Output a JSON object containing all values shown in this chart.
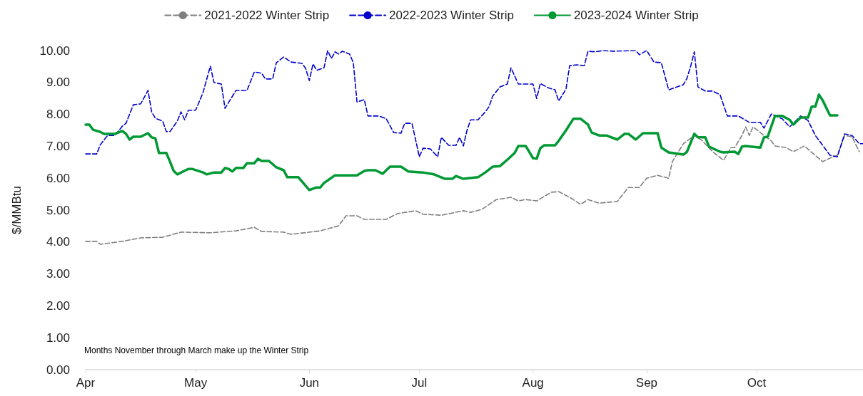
{
  "chart_data": {
    "type": "line",
    "ylabel": "$/MMBtu",
    "annotations": [
      "Months November through March make up the Winter Strip"
    ],
    "xlim": [
      "--04-01",
      "--10-30"
    ],
    "xticks": [
      {
        "value": "--04-01",
        "label": "Apr"
      },
      {
        "value": "--05-01",
        "label": "May"
      },
      {
        "value": "--06-01",
        "label": "Jun"
      },
      {
        "value": "--07-01",
        "label": "Jul"
      },
      {
        "value": "--08-01",
        "label": "Aug"
      },
      {
        "value": "--09-01",
        "label": "Sep"
      },
      {
        "value": "--10-01",
        "label": "Oct"
      }
    ],
    "ylim": [
      0,
      10
    ],
    "yticks": [
      {
        "value": 0,
        "label": "0.00"
      },
      {
        "value": 1,
        "label": "1.00"
      },
      {
        "value": 2,
        "label": "2.00"
      },
      {
        "value": 3,
        "label": "3.00"
      },
      {
        "value": 4,
        "label": "4.00"
      },
      {
        "value": 5,
        "label": "5.00"
      },
      {
        "value": 6,
        "label": "6.00"
      },
      {
        "value": 7,
        "label": "7.00"
      },
      {
        "value": 8,
        "label": "8.00"
      },
      {
        "value": 9,
        "label": "9.00"
      },
      {
        "value": 10,
        "label": "10.00"
      }
    ],
    "grid": false,
    "legend": "top",
    "marker": "none",
    "series": [
      {
        "name": "2021-2022 Winter Strip",
        "color": "#7f7f7f",
        "line_style": "dashed",
        "x": [
          "--04-01",
          "--04-04",
          "--04-05",
          "--04-11",
          "--04-16",
          "--04-22",
          "--04-27",
          "--05-05",
          "--05-12",
          "--05-17",
          "--05-19",
          "--05-25",
          "--05-27",
          "--06-04",
          "--06-09",
          "--06-11",
          "--06-14",
          "--06-16",
          "--06-22",
          "--06-25",
          "--06-30",
          "--07-02",
          "--07-07",
          "--07-13",
          "--07-15",
          "--07-18",
          "--07-22",
          "--07-26",
          "--07-28",
          "--07-30",
          "--08-02",
          "--08-06",
          "--08-08",
          "--08-11",
          "--08-14",
          "--08-16",
          "--08-19",
          "--08-24",
          "--08-27",
          "--08-30",
          "--09-01",
          "--09-04",
          "--09-07",
          "--09-08",
          "--09-11",
          "--09-14",
          "--09-16",
          "--09-19",
          "--09-22",
          "--09-24",
          "--09-25",
          "--09-27",
          "--09-28",
          "--09-29",
          "--09-30",
          "--10-03",
          "--10-05",
          "--10-06",
          "--10-09",
          "--10-11",
          "--10-14",
          "--10-16",
          "--10-19",
          "--10-21",
          "--10-23",
          "--10-25",
          "--10-27",
          "--10-29"
        ],
        "values": [
          4.02,
          4.02,
          3.93,
          4.02,
          4.13,
          4.15,
          4.31,
          4.29,
          4.35,
          4.46,
          4.33,
          4.31,
          4.24,
          4.35,
          4.51,
          4.82,
          4.82,
          4.71,
          4.71,
          4.89,
          4.98,
          4.87,
          4.84,
          4.98,
          4.93,
          5.02,
          5.33,
          5.4,
          5.29,
          5.33,
          5.29,
          5.56,
          5.58,
          5.4,
          5.18,
          5.33,
          5.22,
          5.27,
          5.71,
          5.71,
          6.0,
          6.09,
          6.0,
          6.52,
          7.08,
          7.34,
          7.19,
          6.83,
          6.56,
          6.96,
          6.96,
          7.34,
          7.61,
          7.34,
          7.61,
          7.34,
          7.17,
          7.01,
          6.96,
          6.83,
          7.01,
          6.81,
          6.52,
          6.63,
          6.72,
          7.34,
          7.3,
          6.83
        ]
      },
      {
        "name": "2022-2023 Winter Strip",
        "color": "#0000cc",
        "line_style": "dashed",
        "x": [
          "--04-01",
          "--04-04",
          "--04-05",
          "--04-07",
          "--04-09",
          "--04-11",
          "--04-12",
          "--04-14",
          "--04-16",
          "--04-18",
          "--04-19",
          "--04-20",
          "--04-22",
          "--04-23",
          "--04-24",
          "--04-26",
          "--04-27",
          "--04-28",
          "--04-29",
          "--05-01",
          "--05-03",
          "--05-05",
          "--05-06",
          "--05-08",
          "--05-09",
          "--05-12",
          "--05-15",
          "--05-17",
          "--05-19",
          "--05-20",
          "--05-22",
          "--05-23",
          "--05-25",
          "--05-27",
          "--05-30",
          "--05-31",
          "--06-01",
          "--06-02",
          "--06-03",
          "--06-05",
          "--06-06",
          "--06-07",
          "--06-08",
          "--06-09",
          "--06-10",
          "--06-12",
          "--06-13",
          "--06-14",
          "--06-16",
          "--06-17",
          "--06-20",
          "--06-22",
          "--06-24",
          "--06-26",
          "--06-27",
          "--06-29",
          "--07-01",
          "--07-02",
          "--07-04",
          "--07-06",
          "--07-07",
          "--07-09",
          "--07-11",
          "--07-12",
          "--07-13",
          "--07-14",
          "--07-15",
          "--07-17",
          "--07-19",
          "--07-20",
          "--07-21",
          "--07-23",
          "--07-25",
          "--07-26",
          "--07-28",
          "--08-01",
          "--08-02",
          "--08-03",
          "--08-05",
          "--08-07",
          "--08-08",
          "--08-10",
          "--08-11",
          "--08-13",
          "--08-15",
          "--08-16",
          "--08-18",
          "--08-20",
          "--08-23",
          "--08-29",
          "--08-30",
          "--09-01",
          "--09-03",
          "--09-05",
          "--09-07",
          "--09-11",
          "--09-12",
          "--09-13",
          "--09-14",
          "--09-15",
          "--09-17",
          "--09-19",
          "--09-21",
          "--09-23",
          "--09-26",
          "--09-29",
          "--10-02",
          "--10-03",
          "--10-05",
          "--10-08",
          "--10-10",
          "--10-13",
          "--10-15",
          "--10-17",
          "--10-21",
          "--10-23",
          "--10-25",
          "--10-27",
          "--10-29",
          "--10-30"
        ],
        "values": [
          6.76,
          6.76,
          7.05,
          7.34,
          7.34,
          7.63,
          7.72,
          8.3,
          8.33,
          8.75,
          8.08,
          7.88,
          7.79,
          7.46,
          7.46,
          7.79,
          8.08,
          7.83,
          8.13,
          8.13,
          8.68,
          9.51,
          9.0,
          8.95,
          8.19,
          8.75,
          8.75,
          9.33,
          9.29,
          9.11,
          9.11,
          9.62,
          9.8,
          9.64,
          9.6,
          9.44,
          9.06,
          9.58,
          9.38,
          9.46,
          10.0,
          9.75,
          9.96,
          9.89,
          9.98,
          9.89,
          9.62,
          8.39,
          8.46,
          7.95,
          7.95,
          7.86,
          7.43,
          7.41,
          7.72,
          7.72,
          6.67,
          6.94,
          6.92,
          6.67,
          7.28,
          7.03,
          7.03,
          7.28,
          7.01,
          7.5,
          7.83,
          7.83,
          8.08,
          8.24,
          8.57,
          8.86,
          8.95,
          9.46,
          8.95,
          8.95,
          8.5,
          8.97,
          8.84,
          8.77,
          8.42,
          8.79,
          9.53,
          9.55,
          9.53,
          9.98,
          9.96,
          10.0,
          9.98,
          10.0,
          9.87,
          10.0,
          9.64,
          9.62,
          8.77,
          8.93,
          9.13,
          9.51,
          9.96,
          8.86,
          8.73,
          8.73,
          8.62,
          7.95,
          7.95,
          7.75,
          7.75,
          7.57,
          8.01,
          7.86,
          7.61,
          7.95,
          7.81,
          7.34,
          6.72,
          6.67,
          7.39,
          7.34,
          7.08,
          7.08
        ]
      },
      {
        "name": "2023-2024 Winter Strip",
        "color": "#009933",
        "line_style": "solid",
        "x": [
          "--04-01",
          "--04-02",
          "--04-03",
          "--04-05",
          "--04-06",
          "--04-09",
          "--04-11",
          "--04-12",
          "--04-13",
          "--04-14",
          "--04-16",
          "--04-18",
          "--04-19",
          "--04-20",
          "--04-21",
          "--04-23",
          "--04-24",
          "--04-25",
          "--04-26",
          "--04-29",
          "--04-30",
          "--05-03",
          "--05-04",
          "--05-06",
          "--05-08",
          "--05-09",
          "--05-10",
          "--05-11",
          "--05-12",
          "--05-14",
          "--05-15",
          "--05-17",
          "--05-18",
          "--05-19",
          "--05-21",
          "--05-23",
          "--05-25",
          "--05-26",
          "--05-29",
          "--06-01",
          "--06-03",
          "--06-04",
          "--06-05",
          "--06-08",
          "--06-14",
          "--06-16",
          "--06-17",
          "--06-19",
          "--06-21",
          "--06-23",
          "--06-26",
          "--06-28",
          "--07-02",
          "--07-05",
          "--07-08",
          "--07-10",
          "--07-11",
          "--07-13",
          "--07-17",
          "--07-19",
          "--07-21",
          "--07-23",
          "--07-25",
          "--07-27",
          "--07-28",
          "--07-30",
          "--08-01",
          "--08-02",
          "--08-03",
          "--08-04",
          "--08-07",
          "--08-08",
          "--08-10",
          "--08-12",
          "--08-14",
          "--08-16",
          "--08-17",
          "--08-19",
          "--08-21",
          "--08-24",
          "--08-26",
          "--08-27",
          "--08-29",
          "--08-31",
          "--09-04",
          "--09-05",
          "--09-07",
          "--09-11",
          "--09-12",
          "--09-14",
          "--09-15",
          "--09-17",
          "--09-18",
          "--09-21",
          "--09-22",
          "--09-25",
          "--09-26",
          "--09-27",
          "--09-28",
          "--10-02",
          "--10-03",
          "--10-04",
          "--10-06",
          "--10-08",
          "--10-10",
          "--10-11",
          "--10-13",
          "--10-15",
          "--10-16",
          "--10-17",
          "--10-18",
          "--10-19",
          "--10-21",
          "--10-23"
        ],
        "values": [
          7.68,
          7.68,
          7.52,
          7.45,
          7.39,
          7.39,
          7.48,
          7.39,
          7.21,
          7.3,
          7.3,
          7.41,
          7.28,
          7.25,
          6.79,
          6.79,
          6.52,
          6.23,
          6.12,
          6.29,
          6.29,
          6.18,
          6.12,
          6.18,
          6.18,
          6.32,
          6.29,
          6.21,
          6.32,
          6.32,
          6.47,
          6.47,
          6.61,
          6.54,
          6.54,
          6.34,
          6.25,
          6.03,
          6.03,
          5.63,
          5.71,
          5.71,
          5.85,
          6.09,
          6.09,
          6.23,
          6.25,
          6.25,
          6.14,
          6.36,
          6.36,
          6.21,
          6.18,
          6.12,
          5.98,
          5.98,
          6.07,
          5.98,
          6.03,
          6.18,
          6.36,
          6.38,
          6.58,
          6.79,
          7.01,
          7.01,
          6.63,
          6.61,
          6.94,
          7.03,
          7.03,
          7.17,
          7.5,
          7.86,
          7.86,
          7.68,
          7.43,
          7.34,
          7.34,
          7.21,
          7.39,
          7.39,
          7.21,
          7.41,
          7.41,
          6.96,
          6.81,
          6.74,
          6.83,
          7.39,
          7.28,
          7.28,
          6.99,
          6.83,
          6.81,
          6.83,
          6.76,
          6.99,
          7.01,
          6.96,
          7.28,
          7.3,
          7.95,
          7.95,
          7.83,
          7.68,
          7.9,
          7.9,
          8.24,
          8.24,
          8.62,
          8.44,
          7.97,
          7.97
        ]
      }
    ]
  }
}
